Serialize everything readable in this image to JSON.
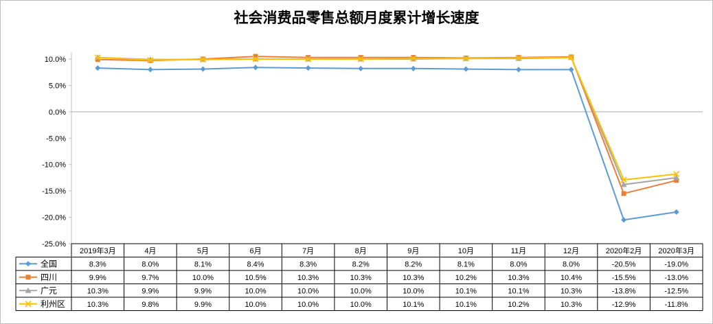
{
  "chart_data": {
    "type": "line",
    "title": "社会消费品零售总额月度累计增长速度",
    "categories": [
      "2019年3月",
      "4月",
      "5月",
      "6月",
      "7月",
      "8月",
      "9月",
      "10月",
      "11月",
      "12月",
      "2020年2月",
      "2020年3月"
    ],
    "ylim": [
      -25,
      10
    ],
    "yticks": [
      10,
      5,
      0,
      -5,
      -10,
      -15,
      -20,
      -25
    ],
    "ytick_labels": [
      "10.0%",
      "5.0%",
      "0.0%",
      "-5.0%",
      "-10.0%",
      "-15.0%",
      "-20.0%",
      "-25.0%"
    ],
    "grid": false,
    "legend": "data-table",
    "series": [
      {
        "name": "全国",
        "color": "#5B9BD5",
        "marker": "diamond",
        "values": [
          8.3,
          8.0,
          8.1,
          8.4,
          8.3,
          8.2,
          8.2,
          8.1,
          8.0,
          8.0,
          -20.5,
          -19.0
        ],
        "labels": [
          "8.3%",
          "8.0%",
          "8.1%",
          "8.4%",
          "8.3%",
          "8.2%",
          "8.2%",
          "8.1%",
          "8.0%",
          "8.0%",
          "-20.5%",
          "-19.0%"
        ]
      },
      {
        "name": "四川",
        "color": "#ED7D31",
        "marker": "square",
        "values": [
          9.9,
          9.7,
          10.0,
          10.5,
          10.3,
          10.3,
          10.3,
          10.2,
          10.3,
          10.4,
          -15.5,
          -13.0
        ],
        "labels": [
          "9.9%",
          "9.7%",
          "10.0%",
          "10.5%",
          "10.3%",
          "10.3%",
          "10.3%",
          "10.2%",
          "10.3%",
          "10.4%",
          "-15.5%",
          "-13.0%"
        ]
      },
      {
        "name": "广元",
        "color": "#A5A5A5",
        "marker": "triangle",
        "values": [
          10.3,
          9.9,
          9.9,
          10.0,
          10.0,
          10.0,
          10.0,
          10.1,
          10.1,
          10.3,
          -13.8,
          -12.5
        ],
        "labels": [
          "10.3%",
          "9.9%",
          "9.9%",
          "10.0%",
          "10.0%",
          "10.0%",
          "10.0%",
          "10.1%",
          "10.1%",
          "10.3%",
          "-13.8%",
          "-12.5%"
        ]
      },
      {
        "name": "利州区",
        "color": "#FFC000",
        "marker": "x",
        "values": [
          10.3,
          9.8,
          9.9,
          10.0,
          10.0,
          10.0,
          10.1,
          10.1,
          10.2,
          10.3,
          -12.9,
          -11.8
        ],
        "labels": [
          "10.3%",
          "9.8%",
          "9.9%",
          "10.0%",
          "10.0%",
          "10.0%",
          "10.1%",
          "10.1%",
          "10.2%",
          "10.3%",
          "-12.9%",
          "-11.8%"
        ]
      }
    ]
  }
}
